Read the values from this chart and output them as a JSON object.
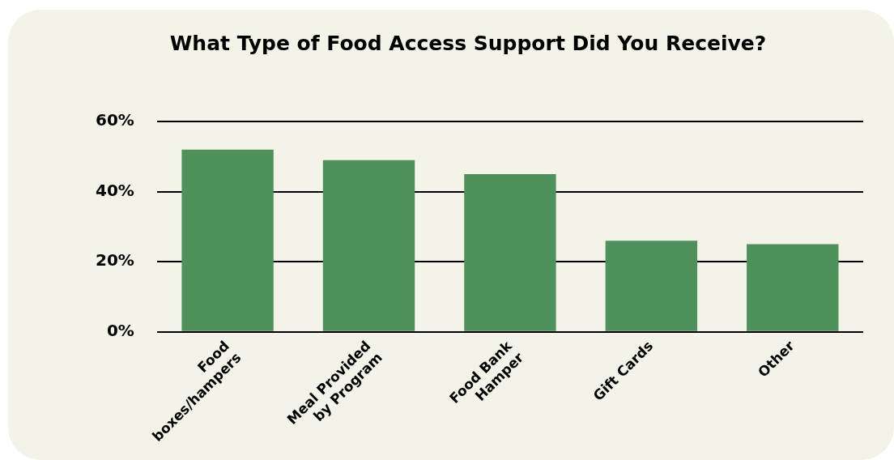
{
  "chart_data": {
    "type": "bar",
    "title": "What Type of Food Access Support Did You Receive?",
    "categories": [
      "Food\nboxes/hampers",
      "Meal Provided\nby Program",
      "Food Bank\nHamper",
      "Gift Cards",
      "Other"
    ],
    "values": [
      52,
      49,
      45,
      26,
      25
    ],
    "color": "#4f915b",
    "ylim": [
      0,
      60
    ],
    "yticks": [
      {
        "value": 0,
        "label": "0%"
      },
      {
        "value": 20,
        "label": "20%"
      },
      {
        "value": 40,
        "label": "40%"
      },
      {
        "value": 60,
        "label": "60%"
      }
    ],
    "grid": "y",
    "legend": false
  }
}
